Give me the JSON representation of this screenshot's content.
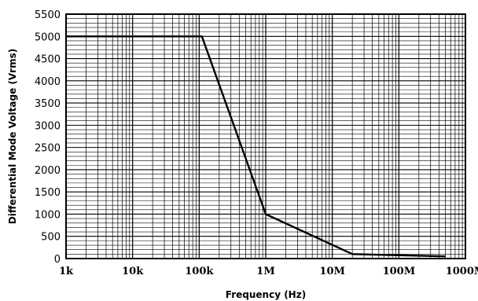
{
  "chart_data": {
    "type": "line",
    "title": "",
    "xlabel": "Frequency (Hz)",
    "ylabel": "Differential Mode Voltage (Vrms)",
    "x_scale": "log",
    "xlim": [
      1000,
      1000000000
    ],
    "ylim": [
      0,
      5500
    ],
    "grid": true,
    "x_ticks": [
      {
        "value": 1000,
        "label": "1k"
      },
      {
        "value": 10000,
        "label": "10k"
      },
      {
        "value": 100000,
        "label": "100k"
      },
      {
        "value": 1000000,
        "label": "1M"
      },
      {
        "value": 10000000,
        "label": "10M"
      },
      {
        "value": 100000000,
        "label": "100M"
      },
      {
        "value": 1000000000,
        "label": "1000M"
      }
    ],
    "y_ticks": [
      0,
      500,
      1000,
      1500,
      2000,
      2500,
      3000,
      3500,
      4000,
      4500,
      5000,
      5500
    ],
    "series": [
      {
        "x": [
          1000,
          110000,
          1000000,
          20000000,
          500000000
        ],
        "y": [
          5000,
          5000,
          1000,
          100,
          50
        ]
      }
    ]
  }
}
